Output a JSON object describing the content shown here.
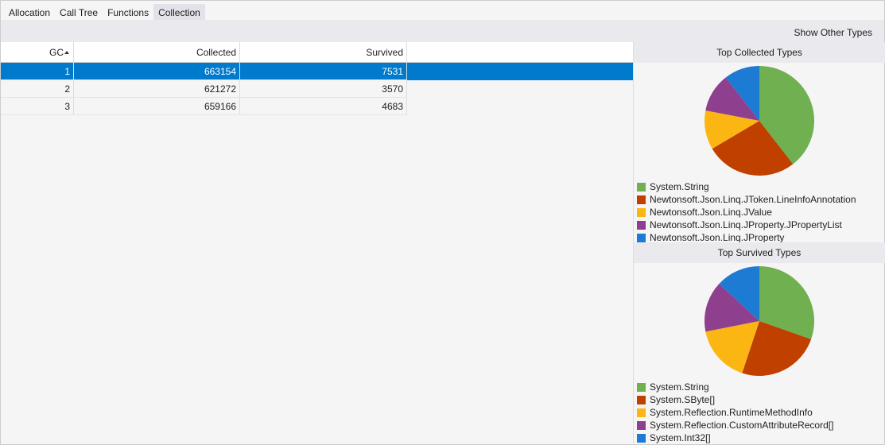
{
  "tabs": [
    "Allocation",
    "Call Tree",
    "Functions",
    "Collection"
  ],
  "toolbar": {
    "button": "Show Other Types"
  },
  "table": {
    "columns": [
      "GC",
      "Collected",
      "Survived"
    ],
    "rows": [
      [
        1,
        663154,
        7531
      ],
      [
        2,
        621272,
        3570
      ],
      [
        3,
        659166,
        4683
      ]
    ]
  },
  "chart_data": [
    {
      "type": "pie",
      "title": "Top Collected Types",
      "categories": [
        "System.String",
        "Newtonsoft.Json.Linq.JToken.LineInfoAnnotation",
        "Newtonsoft.Json.Linq.JValue",
        "Newtonsoft.Json.Linq.JProperty.JPropertyList",
        "Newtonsoft.Json.Linq.JProperty"
      ],
      "values": [
        39.5,
        27,
        11.5,
        11.5,
        10.5
      ],
      "colors": [
        "#70b050",
        "#c04000",
        "#fbb614",
        "#8e3f8e",
        "#1e7bd3"
      ]
    },
    {
      "type": "pie",
      "title": "Top Survived Types",
      "categories": [
        "System.String",
        "System.SByte[]",
        "System.Reflection.RuntimeMethodInfo",
        "System.Reflection.CustomAttributeRecord[]",
        "System.Int32[]"
      ],
      "values": [
        30.4,
        24.7,
        16.8,
        15,
        13.1
      ],
      "colors": [
        "#70b050",
        "#c04000",
        "#fbb614",
        "#8e3f8e",
        "#1e7bd3"
      ]
    }
  ]
}
